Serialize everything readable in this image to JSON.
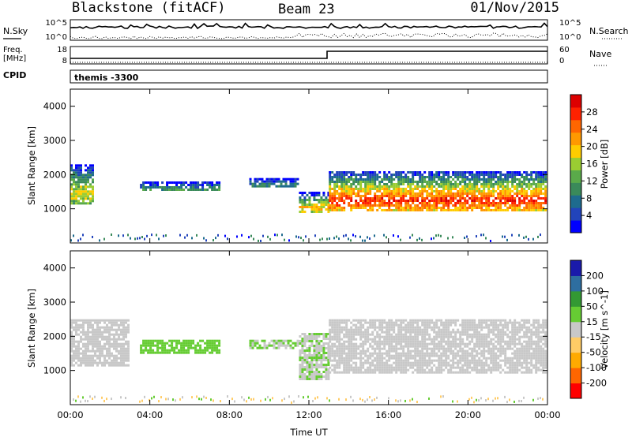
{
  "header": {
    "station": "Blackstone (fitACF)",
    "beam": "Beam 23",
    "date": "01/Nov/2015"
  },
  "upper_panel": {
    "nsky_label": "N.Sky",
    "nsky_ticks": [
      "10^5",
      "10^0"
    ],
    "nsearch_label": "N.Search",
    "nsearch_ticks": [
      "10^5",
      "10^0"
    ],
    "freq_label": "Freq.",
    "freq_unit": "[MHz]",
    "freq_ticks": [
      "18",
      "8"
    ],
    "nave_label": "Nave",
    "nave_ticks": [
      "60",
      "0"
    ],
    "cpid_label": "CPID",
    "cpid_value": "themis -3300"
  },
  "chart_data": [
    {
      "type": "heatmap",
      "title": "",
      "xlabel": "",
      "ylabel": "Slant Range [km]",
      "ylim": [
        0,
        4500
      ],
      "y_ticks": [
        "1000",
        "2000",
        "3000",
        "4000"
      ],
      "x_ticks": [
        "00:00",
        "04:00",
        "08:00",
        "12:00",
        "16:00",
        "20:00",
        "00:00"
      ],
      "xlim_hours": [
        0,
        24
      ],
      "colorbar": {
        "label": "Power [dB]",
        "ticks": [
          "4",
          "8",
          "12",
          "16",
          "20",
          "24",
          "28"
        ],
        "range": [
          0,
          30
        ],
        "colors": [
          "#0000ff",
          "#2244bb",
          "#1e6b8e",
          "#3a8a5a",
          "#5aaa4a",
          "#9acd32",
          "#ffcc00",
          "#ff9900",
          "#ff6600",
          "#ff2200",
          "#dd0000"
        ]
      },
      "features": [
        {
          "start_h": 0.0,
          "end_h": 1.2,
          "range_km": [
            1100,
            2300
          ],
          "power_db": 16
        },
        {
          "start_h": 3.5,
          "end_h": 7.5,
          "range_km": [
            1500,
            1800
          ],
          "power_db": 10
        },
        {
          "start_h": 9.0,
          "end_h": 11.5,
          "range_km": [
            1600,
            1900
          ],
          "power_db": 8
        },
        {
          "start_h": 11.5,
          "end_h": 13.0,
          "range_km": [
            850,
            1500
          ],
          "power_db": 18
        },
        {
          "start_h": 13.0,
          "end_h": 24.0,
          "range_km": [
            900,
            2100
          ],
          "power_db": 24
        }
      ]
    },
    {
      "type": "heatmap",
      "title": "",
      "xlabel": "Time UT",
      "ylabel": "Slant Range [km]",
      "ylim": [
        0,
        4500
      ],
      "y_ticks": [
        "1000",
        "2000",
        "3000",
        "4000"
      ],
      "x_ticks": [
        "00:00",
        "04:00",
        "08:00",
        "12:00",
        "16:00",
        "20:00",
        "00:00"
      ],
      "xlim_hours": [
        0,
        24
      ],
      "colorbar": {
        "label": "Velocity [m s^-1]",
        "ticks": [
          "200",
          "100",
          "50",
          "15",
          "-15",
          "-50",
          "-100",
          "-200"
        ],
        "range": [
          -250,
          250
        ],
        "colors": [
          "#ff0000",
          "#ff6600",
          "#ffaa00",
          "#ffcc66",
          "#c8c8c8",
          "#66cc33",
          "#339933",
          "#2e6ea0",
          "#1a1aaa"
        ]
      },
      "features": [
        {
          "start_h": 0.0,
          "end_h": 3.0,
          "range_km": [
            1100,
            2500
          ],
          "velocity": 0
        },
        {
          "start_h": 3.5,
          "end_h": 7.5,
          "range_km": [
            1500,
            1900
          ],
          "velocity": 60
        },
        {
          "start_h": 9.0,
          "end_h": 11.5,
          "range_km": [
            1600,
            1900
          ],
          "velocity": 30
        },
        {
          "start_h": 11.5,
          "end_h": 13.0,
          "range_km": [
            700,
            2100
          ],
          "velocity": 20
        },
        {
          "start_h": 13.0,
          "end_h": 24.0,
          "range_km": [
            900,
            2500
          ],
          "velocity": 0
        }
      ]
    }
  ]
}
